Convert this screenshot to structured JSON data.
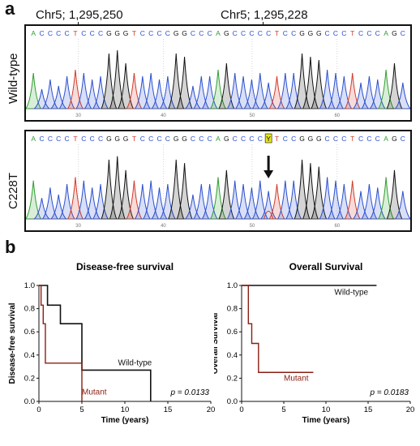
{
  "panel_a": {
    "letter": "a",
    "pos1": "Chr5; 1,295,250",
    "pos2": "Chr5; 1,295,228",
    "wild_label": "Wild-type",
    "mutant_label": "C228T",
    "wild_sequence": [
      "A",
      "C",
      "C",
      "C",
      "C",
      "T",
      "C",
      "C",
      "C",
      "G",
      "G",
      "G",
      "T",
      "C",
      "C",
      "C",
      "C",
      "G",
      "G",
      "C",
      "C",
      "C",
      "A",
      "G",
      "C",
      "C",
      "C",
      "C",
      "C",
      "T",
      "C",
      "C",
      "G",
      "G",
      "G",
      "C",
      "C",
      "C",
      "T",
      "C",
      "C",
      "C",
      "A",
      "G",
      "C"
    ],
    "mutant_sequence": [
      "A",
      "C",
      "C",
      "C",
      "C",
      "T",
      "C",
      "C",
      "C",
      "G",
      "G",
      "G",
      "T",
      "C",
      "C",
      "C",
      "C",
      "G",
      "G",
      "C",
      "C",
      "C",
      "A",
      "G",
      "C",
      "C",
      "C",
      "C",
      "Y",
      "T",
      "C",
      "C",
      "G",
      "G",
      "G",
      "C",
      "C",
      "C",
      "T",
      "C",
      "C",
      "C",
      "A",
      "G",
      "C"
    ],
    "wild_ruler": [
      "30",
      "40",
      "50",
      "60"
    ],
    "mutant_ruler": [
      "30",
      "40",
      "50",
      "60"
    ],
    "base_colors": {
      "A": "#2e9e2e",
      "C": "#2a4fcf",
      "G": "#111111",
      "T": "#d23a2a",
      "Y": "#111111"
    }
  },
  "panel_b": {
    "letter": "b",
    "chart_data": [
      {
        "type": "line",
        "title": "Disease-free survival",
        "xlabel": "Time (years)",
        "ylabel": "Disease-free survival",
        "xlim": [
          0,
          20
        ],
        "ylim": [
          0,
          1.0
        ],
        "xticks": [
          "0",
          "5",
          "10",
          "15",
          "20"
        ],
        "yticks": [
          "0.0",
          "0.2",
          "0.4",
          "0.6",
          "0.8",
          "1.0"
        ],
        "p_value": "p = 0.0133",
        "series": [
          {
            "name": "Wild-type",
            "color": "#111111",
            "step_x": [
              0,
              1,
              2.5,
              5,
              13,
              13
            ],
            "step_y": [
              1.0,
              0.83,
              0.67,
              0.27,
              0.27,
              0.0
            ]
          },
          {
            "name": "Mutant",
            "color": "#8b1e12",
            "step_x": [
              0,
              0.25,
              0.5,
              0.75,
              1.5,
              5,
              5
            ],
            "step_y": [
              1.0,
              0.83,
              0.67,
              0.33,
              0.33,
              0.33,
              0.0
            ]
          }
        ]
      },
      {
        "type": "line",
        "title": "Overall Survival",
        "xlabel": "Time (years)",
        "ylabel": "Overall Survival",
        "xlim": [
          0,
          20
        ],
        "ylim": [
          0,
          1.0
        ],
        "xticks": [
          "0",
          "5",
          "10",
          "15",
          "20"
        ],
        "yticks": [
          "0.0",
          "0.2",
          "0.4",
          "0.6",
          "0.8",
          "1.0"
        ],
        "p_value": "p = 0.0183",
        "series": [
          {
            "name": "Wild-type",
            "color": "#111111",
            "step_x": [
              0,
              16
            ],
            "step_y": [
              1.0,
              1.0
            ]
          },
          {
            "name": "Mutant",
            "color": "#8b1e12",
            "step_x": [
              0,
              0.8,
              1.2,
              2,
              8.5
            ],
            "step_y": [
              1.0,
              0.67,
              0.5,
              0.25,
              0.25
            ]
          }
        ]
      }
    ]
  }
}
